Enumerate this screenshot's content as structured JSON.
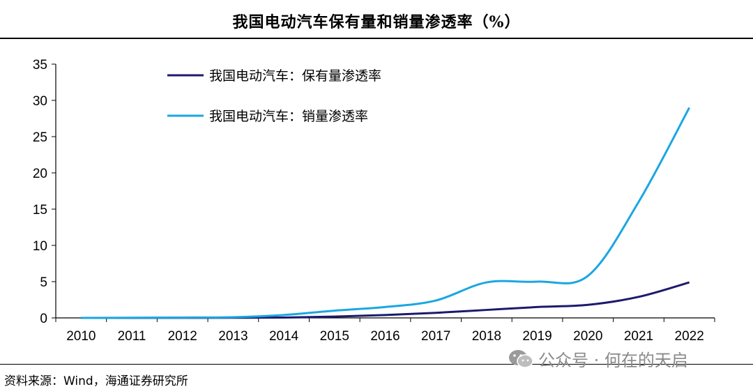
{
  "chart_data": {
    "type": "line",
    "title": "我国电动汽车保有量和销量渗透率（%）",
    "categories": [
      "2010",
      "2011",
      "2012",
      "2013",
      "2014",
      "2015",
      "2016",
      "2017",
      "2018",
      "2019",
      "2020",
      "2021",
      "2022"
    ],
    "ylim": [
      0,
      35
    ],
    "yticks": [
      0,
      5,
      10,
      15,
      20,
      25,
      30,
      35
    ],
    "legend_position": "top-left",
    "grid": false,
    "series": [
      {
        "name": "我国电动汽车：保有量渗透率",
        "color": "#1b1a6e",
        "values": [
          0,
          0,
          0.01,
          0.02,
          0.05,
          0.18,
          0.4,
          0.7,
          1.1,
          1.5,
          1.8,
          2.9,
          4.9
        ]
      },
      {
        "name": "我国电动汽车：销量渗透率",
        "color": "#1aa7e0",
        "values": [
          0,
          0.02,
          0.05,
          0.1,
          0.4,
          1.0,
          1.5,
          2.4,
          4.9,
          5.0,
          5.8,
          16.0,
          29.0
        ]
      }
    ]
  },
  "source_note": "资料来源：Wind，海通证券研究所",
  "watermark": {
    "icon": "wechat-icon",
    "text": "公众号 · 何在的天启"
  }
}
